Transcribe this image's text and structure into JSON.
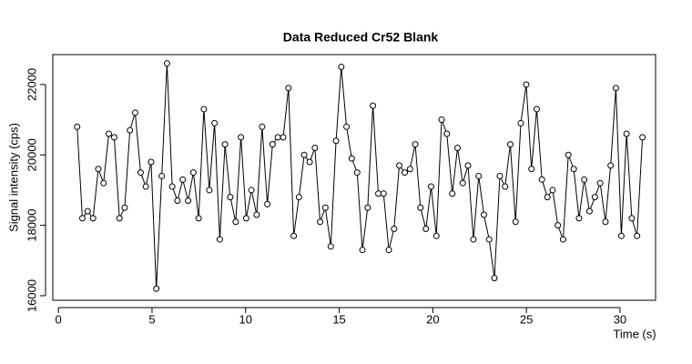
{
  "chart_data": {
    "type": "line",
    "title": "Data Reduced Cr52 Blank",
    "x_label": "Time (s)",
    "y_label": "Signal intensity (cps)",
    "markers": true,
    "color": "#000000",
    "x": [
      1.0,
      1.28,
      1.56,
      1.85,
      2.13,
      2.41,
      2.69,
      2.98,
      3.26,
      3.54,
      3.82,
      4.1,
      4.39,
      4.67,
      4.95,
      5.23,
      5.52,
      5.8,
      6.08,
      6.36,
      6.64,
      6.93,
      7.21,
      7.49,
      7.77,
      8.06,
      8.34,
      8.62,
      8.9,
      9.18,
      9.47,
      9.75,
      10.03,
      10.31,
      10.59,
      10.88,
      11.16,
      11.44,
      11.72,
      12.01,
      12.29,
      12.57,
      12.85,
      13.13,
      13.42,
      13.7,
      13.98,
      14.26,
      14.55,
      14.83,
      15.11,
      15.39,
      15.67,
      15.96,
      16.24,
      16.52,
      16.8,
      17.09,
      17.37,
      17.65,
      17.93,
      18.21,
      18.5,
      18.78,
      19.06,
      19.34,
      19.63,
      19.91,
      20.19,
      20.47,
      20.75,
      21.04,
      21.32,
      21.6,
      21.88,
      22.17,
      22.45,
      22.73,
      23.01,
      23.29,
      23.58,
      23.86,
      24.14,
      24.42,
      24.7,
      24.99,
      25.27,
      25.55,
      25.83,
      26.12,
      26.4,
      26.68,
      26.96,
      27.24,
      27.53,
      27.81,
      28.09,
      28.37,
      28.66,
      28.94,
      29.22,
      29.5,
      29.78,
      30.07,
      30.35,
      30.63,
      30.91,
      31.2
    ],
    "values": [
      20800,
      18200,
      18400,
      18200,
      19600,
      19200,
      20600,
      20500,
      18200,
      18500,
      20700,
      21200,
      19500,
      19100,
      19800,
      16200,
      19400,
      22600,
      19100,
      18700,
      19300,
      18700,
      19500,
      18200,
      21300,
      19000,
      20900,
      17600,
      20300,
      18800,
      18100,
      20500,
      18200,
      19000,
      18300,
      20800,
      18600,
      20300,
      20500,
      20500,
      21900,
      17700,
      18800,
      20000,
      19800,
      20200,
      18100,
      18500,
      17400,
      20400,
      22500,
      20800,
      19900,
      19500,
      17300,
      18500,
      21400,
      18900,
      18900,
      17300,
      17900,
      19700,
      19500,
      19600,
      20300,
      18500,
      17900,
      19100,
      17700,
      21000,
      20600,
      18900,
      20200,
      19200,
      19700,
      17600,
      19400,
      18300,
      17600,
      16500,
      19400,
      19100,
      20300,
      18100,
      20900,
      22000,
      19600,
      21300,
      19300,
      18800,
      19000,
      18000,
      17600,
      20000,
      19600,
      18200,
      19300,
      18400,
      18800,
      19200,
      18100,
      19700,
      21900,
      17700,
      20600,
      18200,
      17700,
      20500
    ],
    "xlim": [
      -0.3,
      31.9
    ],
    "ylim": [
      15870,
      22850
    ],
    "xticks": [
      0,
      5,
      10,
      15,
      20,
      25,
      30
    ],
    "yticks": [
      16000,
      18000,
      20000,
      22000
    ]
  }
}
